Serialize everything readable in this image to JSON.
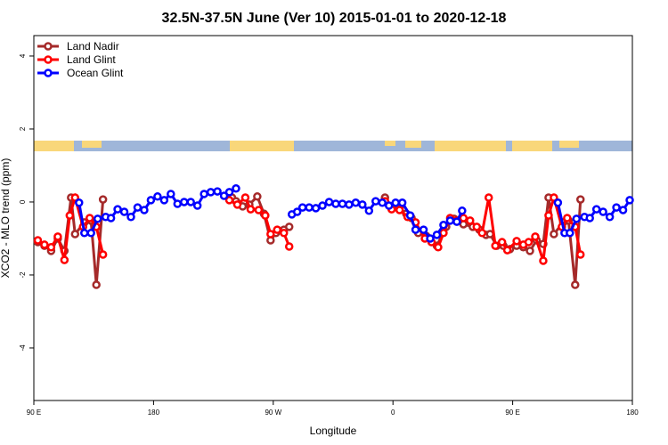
{
  "chart_data": {
    "type": "line",
    "title": "32.5N-37.5N June (Ver 10)   2015-01-01 to 2020-12-18",
    "x_label": "Longitude",
    "y_label": "XCO2 - MLO trend (ppm)",
    "xlim": [
      90,
      540
    ],
    "ylim": [
      -5.44,
      4.56
    ],
    "xticks": [
      {
        "value": 90,
        "label": "90 E"
      },
      {
        "value": 180,
        "label": "180"
      },
      {
        "value": 270,
        "label": "90 W"
      },
      {
        "value": 360,
        "label": "0"
      },
      {
        "value": 450,
        "label": "90 E"
      },
      {
        "value": 540,
        "label": "180"
      }
    ],
    "yticks": [
      -4,
      -2,
      0,
      2,
      4
    ],
    "legend": "top-left",
    "series": [
      {
        "name": "Land Nadir",
        "color": "#a52a2a",
        "x": [
          93,
          98,
          103,
          108,
          113,
          118,
          121,
          128,
          133,
          137,
          142,
          200,
          239,
          242,
          247,
          252,
          258,
          263,
          268,
          272,
          278,
          282,
          320,
          354,
          359,
          365,
          370,
          374,
          379,
          385,
          393,
          400,
          406,
          413,
          420,
          425,
          430,
          433,
          438,
          443,
          448,
          453,
          458,
          463,
          468,
          473,
          477,
          481,
          488,
          492,
          497,
          501
        ],
        "values": [
          -1.1,
          -1.2,
          -1.34,
          -1.0,
          -1.34,
          0.12,
          -0.88,
          -0.56,
          -0.51,
          -2.27,
          0.07,
          null,
          0.12,
          0.02,
          -0.12,
          -0.07,
          0.15,
          -0.32,
          -1.05,
          -0.85,
          -0.76,
          -0.68,
          null,
          0.12,
          -0.12,
          -0.17,
          -0.32,
          -0.44,
          -0.85,
          -0.93,
          -1.2,
          -0.68,
          -0.46,
          -0.61,
          -0.68,
          -0.76,
          -0.9,
          -0.88,
          -1.2,
          -1.2,
          -1.29,
          -1.2,
          -1.24,
          -1.34,
          -1.05,
          -1.15,
          0.12,
          -0.88,
          -0.56,
          -0.51,
          -2.27,
          0.07
        ]
      },
      {
        "name": "Land Glint",
        "color": "#ff0000",
        "x": [
          93,
          98,
          103,
          108,
          113,
          117,
          121,
          127,
          132,
          137,
          142,
          200,
          237,
          243,
          249,
          253,
          259,
          264,
          268,
          273,
          278,
          282,
          320,
          354,
          359,
          365,
          371,
          377,
          384,
          389,
          394,
          398,
          403,
          408,
          413,
          418,
          423,
          427,
          432,
          437,
          442,
          446,
          453,
          458,
          462,
          467,
          473,
          477,
          481,
          487,
          491,
          497,
          501
        ],
        "values": [
          -1.05,
          -1.17,
          -1.24,
          -0.95,
          -1.59,
          -0.37,
          0.12,
          -0.68,
          -0.44,
          -0.68,
          -1.44,
          null,
          0.05,
          -0.07,
          0.12,
          -0.2,
          -0.22,
          -0.37,
          -0.88,
          -0.76,
          -0.85,
          -1.22,
          null,
          0.02,
          -0.2,
          -0.22,
          -0.41,
          -0.56,
          -1.0,
          -1.1,
          -1.24,
          -0.85,
          -0.44,
          -0.51,
          -0.44,
          -0.51,
          -0.68,
          -0.85,
          0.12,
          -1.2,
          -1.1,
          -1.32,
          -1.07,
          -1.17,
          -1.1,
          -0.95,
          -1.61,
          -0.37,
          0.12,
          -0.68,
          -0.44,
          -0.68,
          -1.44
        ]
      },
      {
        "name": "Ocean Glint",
        "color": "#0000ff",
        "x": [
          124,
          128,
          133,
          138,
          144,
          148,
          153,
          158,
          163,
          168,
          173,
          178,
          183,
          188,
          193,
          198,
          203,
          208,
          213,
          218,
          223,
          228,
          233,
          237,
          242,
          250,
          284,
          288,
          292,
          297,
          302,
          307,
          312,
          317,
          322,
          327,
          332,
          337,
          342,
          347,
          352,
          357,
          362,
          367,
          373,
          377,
          383,
          388,
          393,
          398,
          403,
          408,
          412,
          440,
          484,
          489,
          493,
          498,
          504,
          508,
          513,
          518,
          523,
          528,
          533,
          538
        ],
        "values": [
          -0.02,
          -0.85,
          -0.85,
          -0.46,
          -0.41,
          -0.44,
          -0.2,
          -0.27,
          -0.41,
          -0.15,
          -0.22,
          0.05,
          0.15,
          0.05,
          0.22,
          -0.05,
          0.0,
          0.0,
          -0.1,
          0.22,
          0.27,
          0.29,
          0.17,
          0.27,
          0.37,
          null,
          -0.34,
          -0.27,
          -0.15,
          -0.15,
          -0.17,
          -0.1,
          0.0,
          -0.05,
          -0.05,
          -0.07,
          -0.02,
          -0.07,
          -0.24,
          0.02,
          -0.02,
          -0.1,
          -0.02,
          -0.02,
          -0.37,
          -0.76,
          -0.76,
          -1.0,
          -0.9,
          -0.63,
          -0.51,
          -0.54,
          -0.24,
          null,
          -0.02,
          -0.85,
          -0.85,
          -0.46,
          -0.41,
          -0.44,
          -0.2,
          -0.27,
          -0.41,
          -0.15,
          -0.22,
          0.05
        ]
      }
    ]
  }
}
